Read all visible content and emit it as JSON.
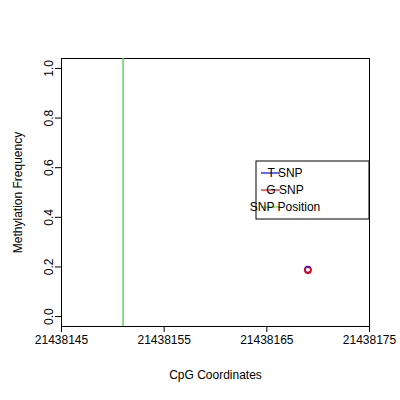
{
  "chart_data": {
    "type": "scatter",
    "x_label": "CpG Coordinates",
    "y_label": "Methylation Frequency",
    "xlim": [
      21438145,
      21438175
    ],
    "xticks": [
      21438145,
      21438155,
      21438165,
      21438175
    ],
    "ylim": [
      -0.04,
      1.04
    ],
    "yticks": [
      {
        "value": 0,
        "label": "0.0"
      },
      0.2,
      0.4,
      0.6,
      0.8,
      {
        "value": 1,
        "label": "1.0"
      }
    ],
    "legend": "right",
    "grid": false,
    "series": [
      {
        "name": "T SNP",
        "color": "#0000ff",
        "type": "scatter",
        "marker": "circle",
        "x": [
          21438169
        ],
        "values": [
          0.19
        ]
      },
      {
        "name": "G SNP",
        "color": "#ff0000",
        "type": "scatter",
        "marker": "circle",
        "x": [
          21438169
        ],
        "values": [
          0.187
        ]
      },
      {
        "name": "SNP Position",
        "color": "#55dd55",
        "type": "vline",
        "x": [
          21438151
        ]
      }
    ]
  }
}
